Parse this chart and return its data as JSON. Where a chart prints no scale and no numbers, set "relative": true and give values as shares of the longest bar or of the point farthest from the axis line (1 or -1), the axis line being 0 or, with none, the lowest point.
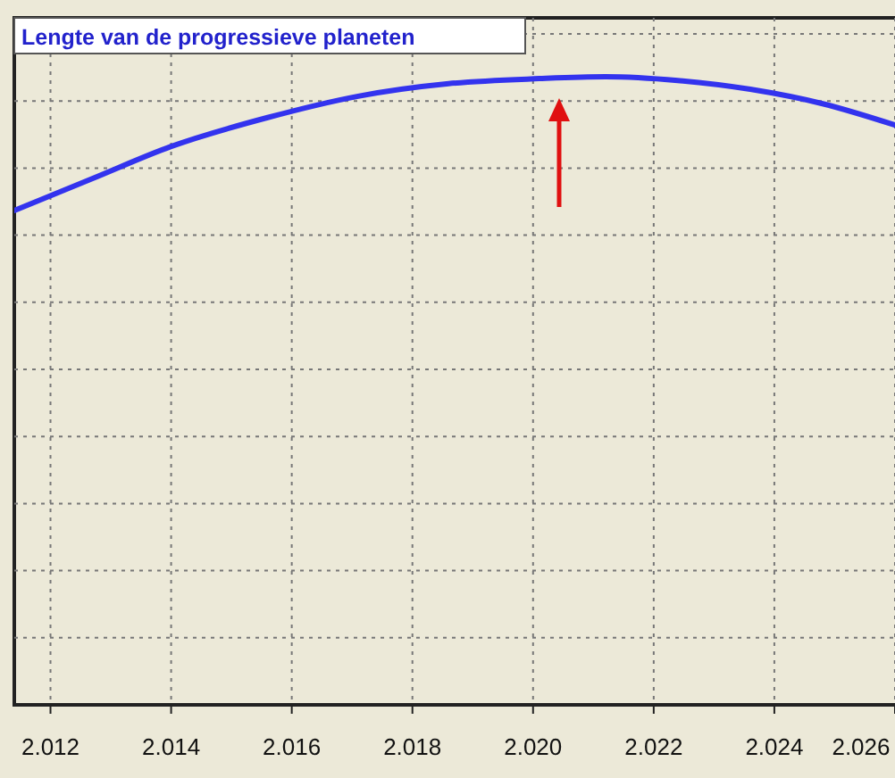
{
  "chart_data": {
    "type": "line",
    "title": "Lengte van de progressieve planeten",
    "relative": true,
    "grid": true,
    "marker": "none",
    "line_style": "solid",
    "x": [
      2.0114,
      2.0127,
      2.014,
      2.0156,
      2.0171,
      2.0186,
      2.0201,
      2.0212,
      2.0224,
      2.0236,
      2.0248,
      2.026
    ],
    "xlim": [
      2.0114,
      2.026
    ],
    "xticks": [
      {
        "value": 2.012,
        "label": "2.012"
      },
      {
        "value": 2.014,
        "label": "2.014"
      },
      {
        "value": 2.016,
        "label": "2.016"
      },
      {
        "value": 2.018,
        "label": "2.018"
      },
      {
        "value": 2.02,
        "label": "2.020"
      },
      {
        "value": 2.022,
        "label": "2.022"
      },
      {
        "value": 2.024,
        "label": "2.024"
      },
      {
        "value": 2.026,
        "label": "2.026"
      }
    ],
    "series": [
      {
        "color": "#3333ee",
        "values": [
          0.787,
          0.838,
          0.889,
          0.935,
          0.969,
          0.989,
          0.997,
          1,
          0.994,
          0.98,
          0.957,
          0.923
        ]
      }
    ],
    "tick_labels": "x"
  }
}
